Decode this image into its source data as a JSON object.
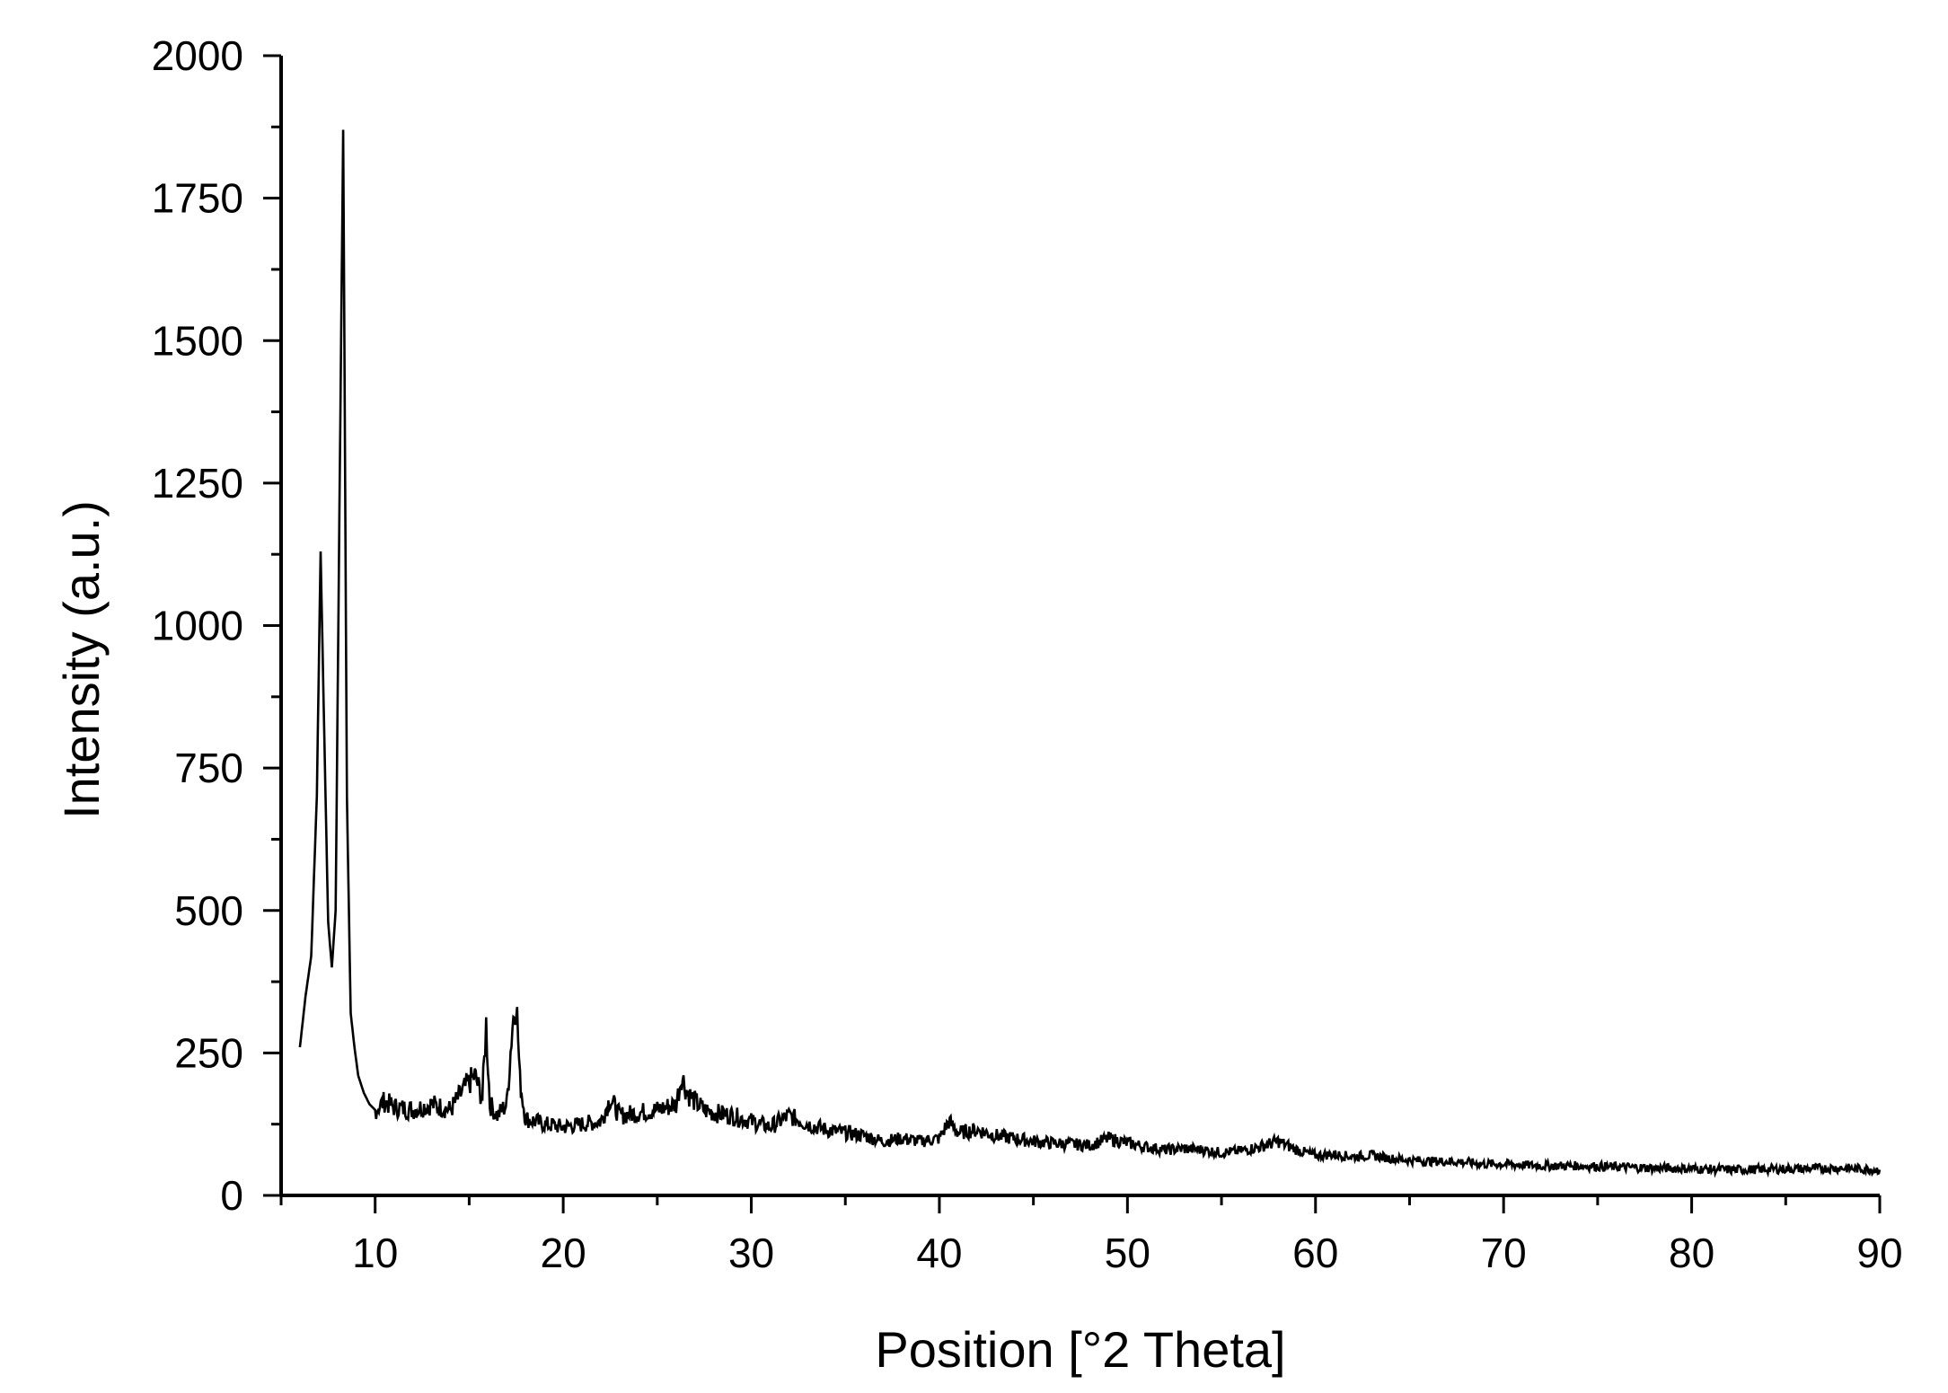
{
  "chart_data": {
    "type": "line",
    "title": "",
    "xlabel": "Position [°2 Theta]",
    "ylabel": "Intensity (a.u.)",
    "xlim": [
      5,
      90
    ],
    "ylim": [
      0,
      2000
    ],
    "x_ticks": [
      10,
      20,
      30,
      40,
      50,
      60,
      70,
      80,
      90
    ],
    "y_ticks": [
      0,
      250,
      500,
      750,
      1000,
      1250,
      1500,
      1750,
      2000
    ],
    "x_tick_labels": [
      "10",
      "20",
      "30",
      "40",
      "50",
      "60",
      "70",
      "80",
      "90"
    ],
    "y_tick_labels": [
      "0",
      "250",
      "500",
      "750",
      "1000",
      "1250",
      "1500",
      "1750",
      "2000"
    ],
    "grid": false,
    "line_color": "#000000",
    "series": [
      {
        "x": [
          6.0,
          6.3,
          6.6,
          6.9,
          7.1,
          7.3,
          7.5,
          7.7,
          7.9,
          8.1,
          8.3,
          8.5,
          8.7,
          8.9,
          9.1,
          9.4,
          9.7,
          10.0,
          10.5,
          11,
          12,
          13,
          14,
          14.8,
          15.3,
          15.7,
          15.9,
          16.1,
          16.5,
          17.0,
          17.3,
          17.5,
          17.7,
          18.0,
          19,
          20,
          21,
          22,
          22.5,
          23,
          24,
          25,
          26,
          26.3,
          26.6,
          27,
          27.5,
          28,
          29,
          30,
          31,
          32,
          33,
          34,
          35,
          36,
          37,
          38,
          39,
          40,
          40.5,
          41,
          42,
          43,
          44,
          45,
          46,
          47,
          48,
          49,
          50,
          51,
          52,
          53,
          54,
          55,
          56,
          57,
          58,
          59,
          60,
          61,
          62,
          63,
          64,
          65,
          66,
          67,
          68,
          69,
          70,
          72,
          74,
          76,
          78,
          80,
          82,
          84,
          86,
          88,
          90
        ],
        "y": [
          260,
          350,
          420,
          700,
          1130,
          800,
          480,
          400,
          500,
          1200,
          1870,
          700,
          320,
          260,
          210,
          180,
          160,
          150,
          165,
          155,
          150,
          160,
          150,
          190,
          210,
          170,
          300,
          160,
          140,
          160,
          300,
          350,
          200,
          135,
          125,
          120,
          125,
          130,
          170,
          140,
          145,
          150,
          160,
          210,
          180,
          165,
          150,
          145,
          140,
          130,
          120,
          140,
          125,
          115,
          110,
          105,
          95,
          100,
          95,
          100,
          130,
          110,
          115,
          105,
          100,
          95,
          92,
          90,
          88,
          100,
          92,
          85,
          80,
          82,
          80,
          75,
          78,
          85,
          95,
          80,
          70,
          72,
          68,
          70,
          65,
          62,
          60,
          60,
          58,
          55,
          55,
          52,
          52,
          50,
          48,
          47,
          45,
          46,
          47,
          48,
          45
        ]
      }
    ]
  }
}
